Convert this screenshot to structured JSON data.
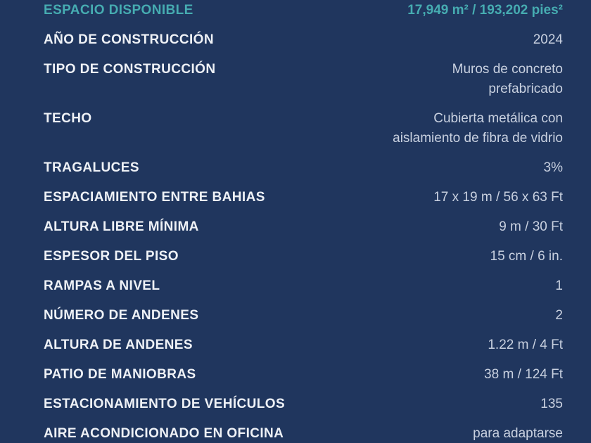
{
  "colors": {
    "background": "#20365e",
    "label_text": "#eef1f6",
    "value_text": "#c9d1e0",
    "highlight_teal": "#46acb1"
  },
  "table": {
    "rows": [
      {
        "label": "ESPACIO DISPONIBLE",
        "value": "17,949 m² / 193,202 pies²",
        "highlight": true
      },
      {
        "label": "AÑO DE CONSTRUCCIÓN",
        "value": "2024",
        "highlight": false
      },
      {
        "label": "TIPO DE CONSTRUCCIÓN",
        "value": "Muros de concreto\nprefabricado",
        "highlight": false
      },
      {
        "label": "TECHO",
        "value": "Cubierta metálica con\naislamiento de fibra de vidrio",
        "highlight": false
      },
      {
        "label": "TRAGALUCES",
        "value": "3%",
        "highlight": false
      },
      {
        "label": "ESPACIAMIENTO ENTRE BAHIAS",
        "value": "17 x 19 m / 56 x 63 Ft",
        "highlight": false
      },
      {
        "label": "ALTURA LIBRE MÍNIMA",
        "value": "9 m / 30 Ft",
        "highlight": false
      },
      {
        "label": "ESPESOR DEL PISO",
        "value": "15 cm / 6 in.",
        "highlight": false
      },
      {
        "label": "RAMPAS A NIVEL",
        "value": "1",
        "highlight": false
      },
      {
        "label": "NÚMERO DE ANDENES",
        "value": "2",
        "highlight": false
      },
      {
        "label": "ALTURA DE ANDENES",
        "value": "1.22 m / 4 Ft",
        "highlight": false
      },
      {
        "label": "PATIO DE MANIOBRAS",
        "value": "38 m / 124 Ft",
        "highlight": false
      },
      {
        "label": "ESTACIONAMIENTO DE VEHÍCULOS",
        "value": "135",
        "highlight": false
      },
      {
        "label": "AIRE ACONDICIONADO EN OFICINA",
        "value": "para adaptarse",
        "highlight": false
      }
    ]
  }
}
